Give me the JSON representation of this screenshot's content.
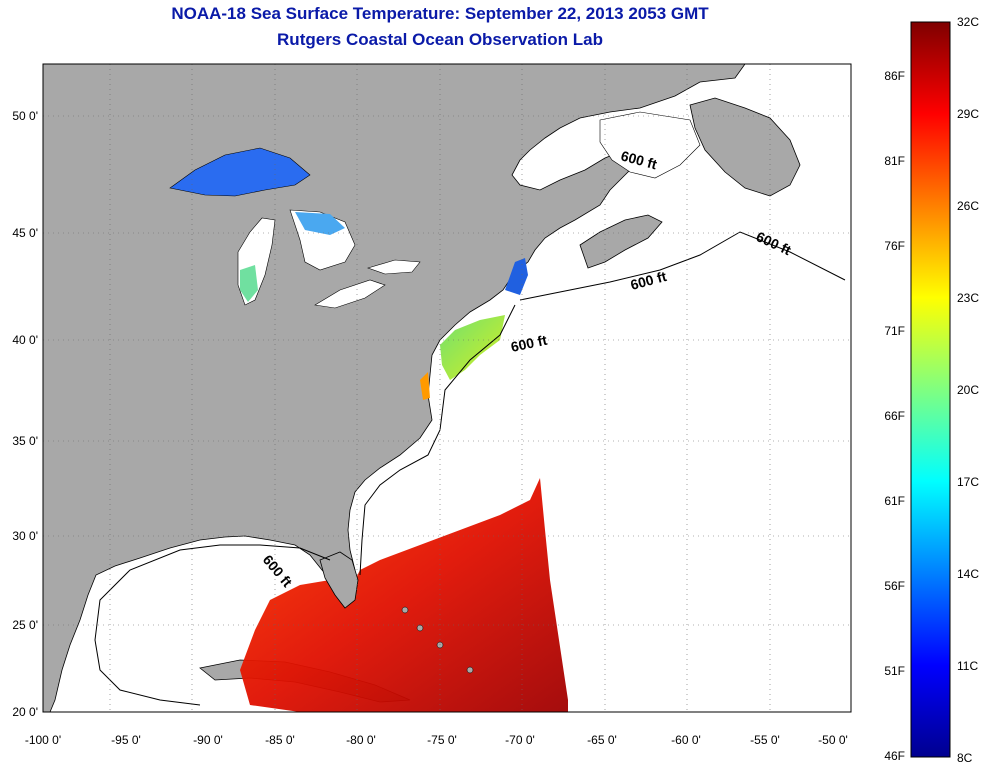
{
  "title": {
    "line1": "NOAA-18 Sea Surface Temperature:  September 22, 2013 2053 GMT",
    "line2": "Rutgers Coastal Ocean Observation Lab"
  },
  "axes": {
    "lon_labels": [
      "-100 0'",
      "-95 0'",
      "-90 0'",
      "-85 0'",
      "-80 0'",
      "-75 0'",
      "-70 0'",
      "-65 0'",
      "-60 0'",
      "-55 0'",
      "-50 0'"
    ],
    "lat_labels": [
      "50 0'",
      "45 0'",
      "40 0'",
      "35 0'",
      "30 0'",
      "25 0'",
      "20 0'"
    ]
  },
  "contour_label": "600 ft",
  "colorbar": {
    "celsius": [
      "32C",
      "29C",
      "26C",
      "23C",
      "20C",
      "17C",
      "14C",
      "11C",
      "8C"
    ],
    "fahrenheit": [
      "86F",
      "81F",
      "76F",
      "71F",
      "66F",
      "61F",
      "56F",
      "51F",
      "46F"
    ],
    "colors": [
      "#7f0000",
      "#ff0000",
      "#ff8000",
      "#ffff00",
      "#80ff80",
      "#00ffff",
      "#0080ff",
      "#0000ff",
      "#00008f"
    ]
  },
  "colors": {
    "land": "#a8a8a8",
    "ocean": "#ffffff",
    "title": "#0a1aa8"
  }
}
